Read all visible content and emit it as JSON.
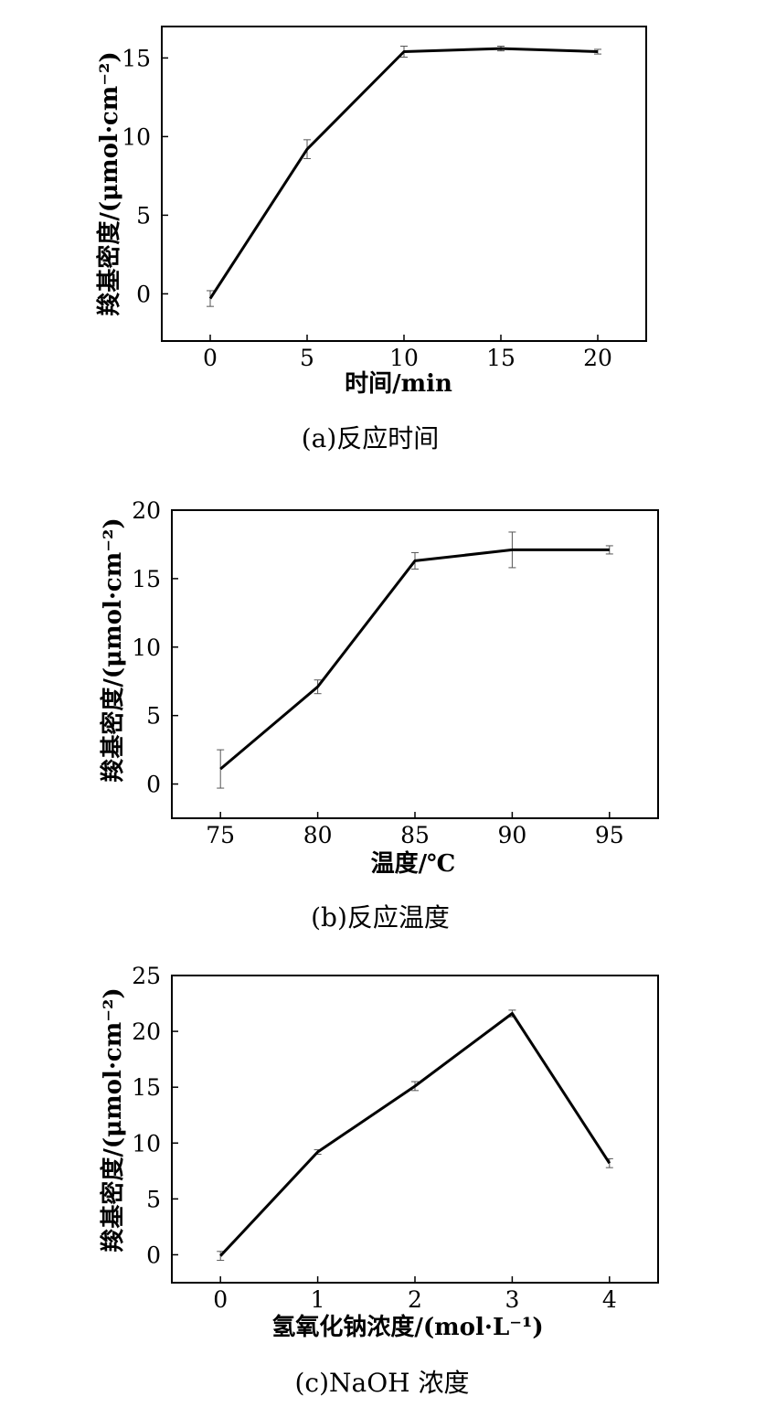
{
  "chart_data": [
    {
      "type": "line",
      "x": [
        0,
        5,
        10,
        15,
        20
      ],
      "values": [
        -0.3,
        9.2,
        15.4,
        15.6,
        15.4
      ],
      "errors": [
        0.5,
        0.6,
        0.35,
        0.15,
        0.15
      ],
      "xticks": [
        "0",
        "5",
        "10",
        "15",
        "20"
      ],
      "yticks": [
        "0",
        "5",
        "10",
        "15"
      ],
      "xlim": [
        -2.5,
        22.5
      ],
      "ylim": [
        -3,
        17
      ],
      "xlabel": "时间/min",
      "ylabel": "羧基密度/(μmol·cm⁻²)",
      "caption": "(a)反应时间",
      "grid": false,
      "legend": "none"
    },
    {
      "type": "line",
      "x": [
        75,
        80,
        85,
        90,
        95
      ],
      "values": [
        1.1,
        7.1,
        16.3,
        17.1,
        17.1
      ],
      "errors": [
        1.4,
        0.5,
        0.6,
        1.3,
        0.3
      ],
      "xticks": [
        "75",
        "80",
        "85",
        "90",
        "95"
      ],
      "yticks": [
        "0",
        "5",
        "10",
        "15",
        "20"
      ],
      "xlim": [
        72.5,
        97.5
      ],
      "ylim": [
        -2.5,
        20
      ],
      "xlabel": "温度/℃",
      "ylabel": "羧基密度/(μmol·cm⁻²)",
      "caption": "(b)反应温度",
      "grid": false,
      "legend": "none"
    },
    {
      "type": "line",
      "x": [
        0,
        1,
        2,
        3,
        4
      ],
      "values": [
        -0.1,
        9.2,
        15.1,
        21.6,
        8.2
      ],
      "errors": [
        0.4,
        0.2,
        0.4,
        0.3,
        0.4
      ],
      "xticks": [
        "0",
        "1",
        "2",
        "3",
        "4"
      ],
      "yticks": [
        "0",
        "5",
        "10",
        "15",
        "20",
        "25"
      ],
      "xlim": [
        -0.5,
        4.5
      ],
      "ylim": [
        -2.5,
        25
      ],
      "xlabel": "氢氧化钠浓度/(mol·L⁻¹)",
      "ylabel": "羧基密度/(μmol·cm⁻²)",
      "caption": "(c)NaOH 浓度",
      "grid": false,
      "legend": "none"
    }
  ],
  "colors": {
    "line": "#000000",
    "error_bar": "#555555",
    "axes": "#000000",
    "background": "#ffffff"
  }
}
